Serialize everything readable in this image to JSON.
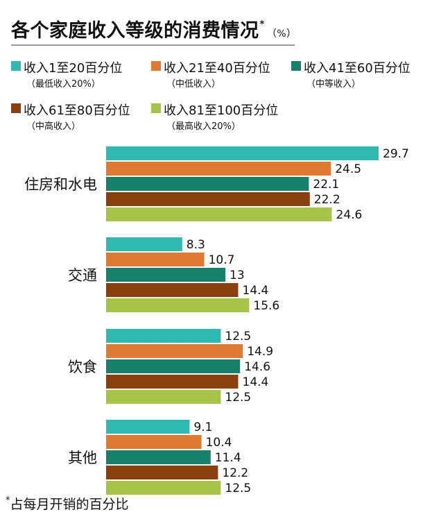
{
  "title": "各个家庭收入等级的消费情况",
  "title_mark": "*",
  "unit": "（%）",
  "footnote_mark": "*",
  "footnote": "占每月开销的百分比",
  "legend": [
    {
      "name": "收入1至20百分位",
      "sub": "（最低收入20%）",
      "color": "#2fb9b1"
    },
    {
      "name": "收入21至40百分位",
      "sub": "（中低收入）",
      "color": "#e07a33"
    },
    {
      "name": "收入41至60百分位",
      "sub": "（中等收入）",
      "color": "#17806a"
    },
    {
      "name": "收入61至80百分位",
      "sub": "（中高收入）",
      "color": "#8a3f0f"
    },
    {
      "name": "收入81至100百分位",
      "sub": "（最高收入20%）",
      "color": "#a6c548"
    }
  ],
  "chart_data": {
    "type": "bar",
    "orientation": "horizontal",
    "categories": [
      "住房和水电",
      "交通",
      "饮食",
      "其他"
    ],
    "series": [
      {
        "name": "收入1至20百分位",
        "values": [
          29.7,
          8.3,
          12.5,
          9.1
        ]
      },
      {
        "name": "收入21至40百分位",
        "values": [
          24.5,
          10.7,
          14.9,
          10.4
        ]
      },
      {
        "name": "收入41至60百分位",
        "values": [
          22.1,
          13,
          14.6,
          11.4
        ]
      },
      {
        "name": "收入61至80百分位",
        "values": [
          22.2,
          14.4,
          14.4,
          12.2
        ]
      },
      {
        "name": "收入81至100百分位",
        "values": [
          24.6,
          15.6,
          12.5,
          12.5
        ]
      }
    ],
    "value_labels": [
      [
        "29.7",
        "8.3",
        "12.5",
        "9.1"
      ],
      [
        "24.5",
        "10.7",
        "14.9",
        "10.4"
      ],
      [
        "22.1",
        "13",
        "14.6",
        "11.4"
      ],
      [
        "22.2",
        "14.4",
        "14.4",
        "12.2"
      ],
      [
        "24.6",
        "15.6",
        "12.5",
        "12.5"
      ]
    ],
    "xlim": [
      0,
      29.7
    ],
    "grid": false,
    "legend_position": "top"
  }
}
